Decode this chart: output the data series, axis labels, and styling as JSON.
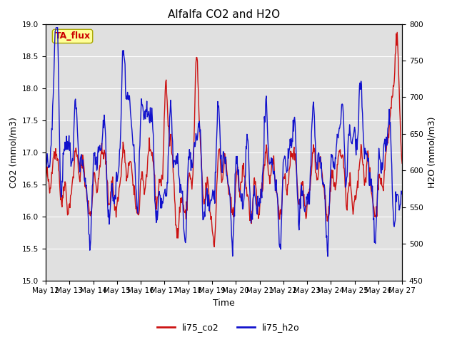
{
  "title": "Alfalfa CO2 and H2O",
  "xlabel": "Time",
  "ylabel_left": "CO2 (mmol/m3)",
  "ylabel_right": "H2O (mmol/m3)",
  "ylim_left": [
    15.0,
    19.0
  ],
  "ylim_right": [
    450,
    800
  ],
  "annotation_text": "TA_flux",
  "annotation_color": "#cc0000",
  "annotation_bg": "#ffff99",
  "annotation_border": "#aaa800",
  "xtick_labels": [
    "May 12",
    "May 13",
    "May 14",
    "May 15",
    "May 16",
    "May 17",
    "May 18",
    "May 19",
    "May 20",
    "May 21",
    "May 22",
    "May 23",
    "May 24",
    "May 25",
    "May 26",
    "May 27"
  ],
  "line_co2_color": "#cc1111",
  "line_h2o_color": "#1111cc",
  "line_width": 1.0,
  "legend_labels": [
    "li75_co2",
    "li75_h2o"
  ],
  "bg_color": "#e0e0e0",
  "title_fontsize": 11,
  "axis_label_fontsize": 9,
  "tick_fontsize": 7.5,
  "legend_fontsize": 9,
  "annotation_fontsize": 9
}
